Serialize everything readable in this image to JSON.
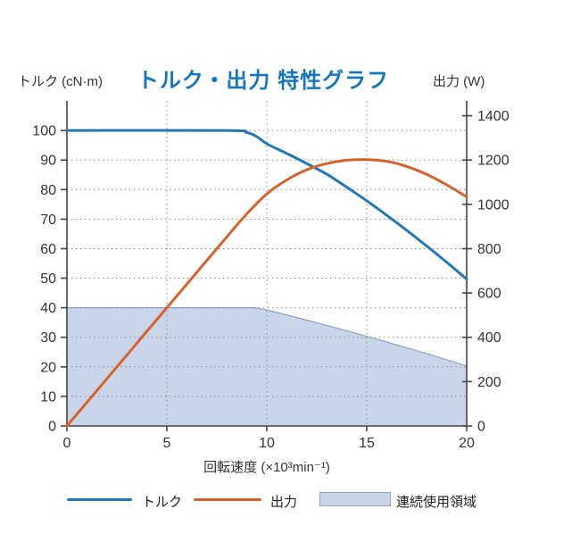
{
  "page": {
    "background": "#ffffff"
  },
  "colors": {
    "title": "#1377bd",
    "axis": "#444444",
    "grid": "#8c8c8c",
    "tick_text": "#333333",
    "torque_blue": "#2277b8",
    "output_orange": "#d9622b",
    "region_fill": "#c9d6ea",
    "region_border": "#8aa5c8"
  },
  "chart_data": {
    "type": "line",
    "title": "トルク・出力 特性グラフ",
    "x_label": "回転速度 (×10³min⁻¹)",
    "x_range": [
      0,
      20
    ],
    "x_ticks": [
      0,
      5,
      10,
      15,
      20
    ],
    "grid": {
      "on": true,
      "h_values_left_axis": [
        10,
        20,
        30,
        40,
        50,
        60,
        70,
        80,
        90,
        100
      ],
      "v_values": [
        5,
        10,
        15
      ],
      "style": "dotted"
    },
    "left_axis": {
      "label": "トルク (cN·m)",
      "range": [
        0,
        110
      ],
      "ticks": [
        0,
        10,
        20,
        30,
        40,
        50,
        60,
        70,
        80,
        90,
        100
      ]
    },
    "right_axis": {
      "label": "出力 (W)",
      "range": [
        0,
        1466.7
      ],
      "ticks": [
        0,
        200,
        400,
        600,
        800,
        1000,
        1200,
        1400
      ]
    },
    "series": [
      {
        "name": "トルク",
        "axis": "left",
        "color": "#2277b8",
        "points": [
          [
            0,
            100
          ],
          [
            8,
            100
          ],
          [
            9,
            99.3
          ],
          [
            9.5,
            97.9
          ],
          [
            10,
            95.5
          ],
          [
            11,
            92.2
          ],
          [
            12,
            88.8
          ],
          [
            13,
            85.2
          ],
          [
            14,
            80.8
          ],
          [
            15,
            76.2
          ],
          [
            16,
            71.3
          ],
          [
            17,
            66.2
          ],
          [
            18,
            60.9
          ],
          [
            19,
            55.4
          ],
          [
            20,
            49.7
          ]
        ]
      },
      {
        "name": "出力",
        "axis": "right",
        "color": "#d9622b",
        "points": [
          [
            0,
            0
          ],
          [
            2,
            213
          ],
          [
            4,
            427
          ],
          [
            6,
            640
          ],
          [
            8,
            853
          ],
          [
            9,
            957
          ],
          [
            10,
            1047
          ],
          [
            11,
            1110
          ],
          [
            12,
            1156
          ],
          [
            13,
            1184
          ],
          [
            14,
            1199
          ],
          [
            15,
            1202
          ],
          [
            16,
            1194
          ],
          [
            17,
            1171
          ],
          [
            18,
            1135
          ],
          [
            19,
            1088
          ],
          [
            20,
            1034
          ]
        ]
      }
    ],
    "region": {
      "name": "連続使用領域",
      "axis": "left",
      "fill": "#c9d6ea",
      "border": "#8aa5c8",
      "boundary": [
        [
          0,
          40
        ],
        [
          9.4,
          40
        ],
        [
          10,
          39.3
        ],
        [
          12,
          35.8
        ],
        [
          14,
          32.2
        ],
        [
          16,
          28.4
        ],
        [
          18,
          24.5
        ],
        [
          20,
          20.3
        ]
      ]
    },
    "legend_position": "bottom"
  }
}
